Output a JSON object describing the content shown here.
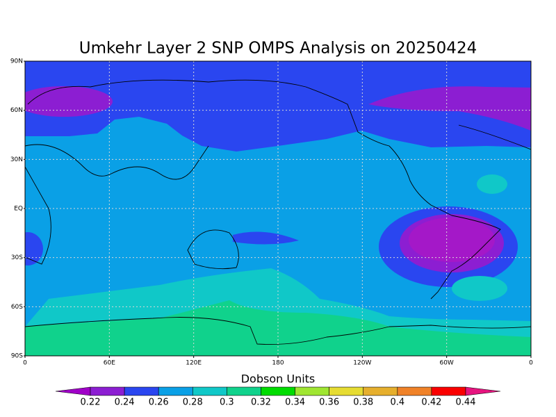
{
  "chart_data": {
    "type": "map",
    "title": "Umkehr Layer 2 SNP OMPS Analysis on 20250424",
    "xlim": [
      0,
      360
    ],
    "ylim": [
      -90,
      90
    ],
    "xticks": [
      0,
      {
        "value": 60,
        "label": "60E"
      },
      {
        "value": 120,
        "label": "120E"
      },
      180,
      {
        "value": 240,
        "label": "120W"
      },
      {
        "value": 300,
        "label": "60W"
      },
      {
        "value": 360,
        "label": "0"
      }
    ],
    "yticks": [
      {
        "value": 90,
        "label": "90N"
      },
      {
        "value": 60,
        "label": "60N"
      },
      {
        "value": 30,
        "label": "30N"
      },
      {
        "value": 0,
        "label": "EQ"
      },
      {
        "value": -30,
        "label": "30S"
      },
      {
        "value": -60,
        "label": "60S"
      },
      {
        "value": -90,
        "label": "90S"
      }
    ],
    "grid": true,
    "colorbar": {
      "title": "Dobson Units",
      "levels": [
        0.22,
        0.24,
        0.26,
        0.28,
        0.3,
        0.32,
        0.34,
        0.36,
        0.38,
        0.4,
        0.42,
        0.44
      ],
      "colors": [
        "#a000c8",
        "#8c1ed2",
        "#2a46f0",
        "#0aa0e6",
        "#10c8c8",
        "#10d28c",
        "#00dc00",
        "#a0e632",
        "#e6dc32",
        "#e6af2d",
        "#f08228",
        "#fa0000",
        "#e6147f"
      ]
    }
  }
}
